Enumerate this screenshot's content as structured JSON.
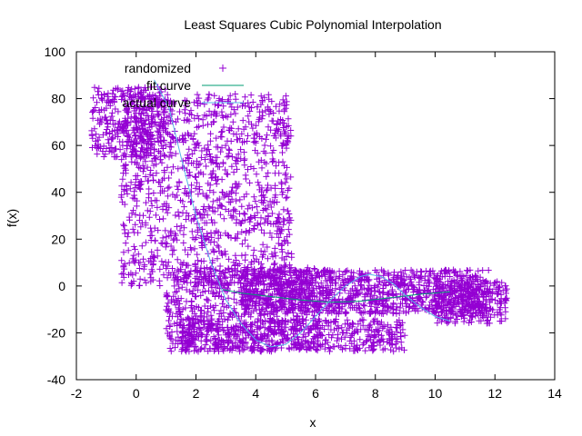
{
  "chart_data": {
    "type": "scatter",
    "title": "Least Squares Cubic Polynomial Interpolation",
    "xlabel": "x",
    "ylabel": "f(x)",
    "xlim": [
      -2,
      14
    ],
    "ylim": [
      -40,
      100
    ],
    "x_ticks": [
      -2,
      0,
      2,
      4,
      6,
      8,
      10,
      12,
      14
    ],
    "y_ticks": [
      -40,
      -20,
      0,
      20,
      40,
      60,
      80,
      100
    ],
    "legend_position": "top-left",
    "grid": false,
    "series": [
      {
        "name": "randomized",
        "kind": "points",
        "marker": "plus",
        "color": "#9400d3",
        "regions": [
          {
            "x_range": [
              -1.5,
              1.0
            ],
            "y_range": [
              55,
              85
            ],
            "count": 340
          },
          {
            "x_range": [
              -0.5,
              5.2
            ],
            "y_range": [
              0,
              82
            ],
            "count": 1200
          },
          {
            "x_range": [
              1.0,
              6.2
            ],
            "y_range": [
              -28,
              8
            ],
            "count": 700
          },
          {
            "x_range": [
              1.5,
              9.0
            ],
            "y_range": [
              -28,
              -14
            ],
            "count": 500
          },
          {
            "x_range": [
              3.5,
              11.8
            ],
            "y_range": [
              -12,
              7
            ],
            "count": 1100
          },
          {
            "x_range": [
              10.0,
              12.4
            ],
            "y_range": [
              -16,
              2
            ],
            "count": 260
          }
        ]
      },
      {
        "name": "fit curve",
        "kind": "line",
        "color": "#009e73",
        "points": [
          [
            2.9,
            -1.5
          ],
          [
            3.5,
            -3
          ],
          [
            4.5,
            -4.5
          ],
          [
            5.5,
            -6
          ],
          [
            6.5,
            -7
          ],
          [
            7.5,
            -6.5
          ],
          [
            8.5,
            -5
          ],
          [
            9.5,
            -3.5
          ],
          [
            10.5,
            -2.5
          ]
        ]
      },
      {
        "name": "actual curve",
        "kind": "line",
        "color": "#56b4e9",
        "points": [
          [
            0.6,
            88
          ],
          [
            1.1,
            76
          ],
          [
            1.5,
            55
          ],
          [
            2.0,
            30
          ],
          [
            2.5,
            10
          ],
          [
            3.0,
            -6
          ],
          [
            3.5,
            -16
          ],
          [
            4.0,
            -23
          ],
          [
            4.5,
            -26
          ],
          [
            5.0,
            -25
          ],
          [
            5.5,
            -20
          ],
          [
            6.0,
            -13
          ],
          [
            6.5,
            -6
          ],
          [
            7.0,
            0
          ],
          [
            7.5,
            4
          ],
          [
            7.8,
            5
          ],
          [
            8.2,
            4
          ],
          [
            8.6,
            1
          ],
          [
            9.0,
            -4
          ],
          [
            9.5,
            -9
          ],
          [
            10.0,
            -13
          ],
          [
            10.5,
            -15
          ]
        ]
      }
    ]
  }
}
